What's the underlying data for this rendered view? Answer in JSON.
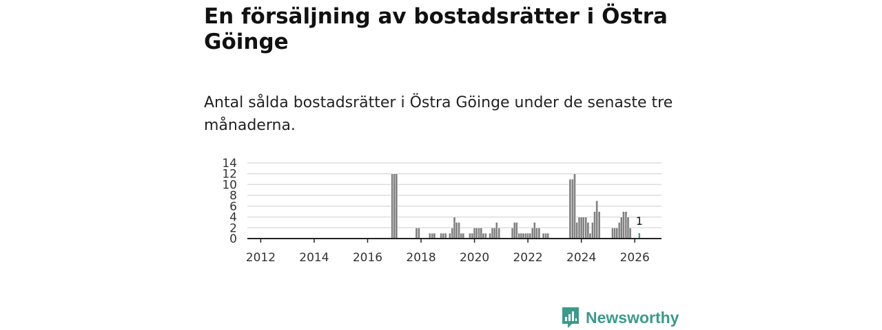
{
  "header": {
    "title": "En försäljning av bostadsrätter i Östra Göinge",
    "subtitle": "Antal sålda bostadsrätter i Östra Göinge under de senaste tre månaderna."
  },
  "brand": {
    "name": "Newsworthy",
    "icon": "newsworthy-logo-icon",
    "color": "#3b9a8c"
  },
  "colors": {
    "bar": "#808080",
    "bar_stroke": "#ffffff",
    "highlight": "#2ba39a",
    "grid": "#dddddd",
    "axis": "#222222"
  },
  "chart_data": {
    "type": "bar",
    "title": "",
    "xlabel": "",
    "ylabel": "",
    "ylim": [
      0,
      14
    ],
    "yticks": [
      0,
      2,
      4,
      6,
      8,
      10,
      12,
      14
    ],
    "xlim": [
      2011.5,
      2027
    ],
    "xticks": [
      2012,
      2014,
      2016,
      2018,
      2020,
      2022,
      2024,
      2026
    ],
    "bar_width_years": 0.0833,
    "x": [
      2016.92,
      2017.0,
      2017.08,
      2017.83,
      2017.92,
      2018.33,
      2018.42,
      2018.5,
      2018.75,
      2018.83,
      2018.92,
      2019.08,
      2019.17,
      2019.25,
      2019.33,
      2019.42,
      2019.5,
      2019.58,
      2019.83,
      2019.92,
      2020.0,
      2020.08,
      2020.17,
      2020.25,
      2020.33,
      2020.42,
      2020.58,
      2020.67,
      2020.75,
      2020.83,
      2020.92,
      2021.42,
      2021.5,
      2021.58,
      2021.67,
      2021.75,
      2021.83,
      2021.92,
      2022.0,
      2022.08,
      2022.17,
      2022.25,
      2022.33,
      2022.42,
      2022.58,
      2022.67,
      2022.75,
      2023.58,
      2023.67,
      2023.75,
      2023.83,
      2023.92,
      2024.0,
      2024.08,
      2024.17,
      2024.25,
      2024.33,
      2024.42,
      2024.5,
      2024.58,
      2024.67,
      2025.17,
      2025.25,
      2025.33,
      2025.42,
      2025.5,
      2025.58,
      2025.67,
      2025.75,
      2025.83,
      2026.17
    ],
    "values": [
      12,
      12,
      12,
      2,
      2,
      1,
      1,
      1,
      1,
      1,
      1,
      1,
      2,
      4,
      3,
      3,
      1,
      1,
      1,
      1,
      2,
      2,
      2,
      2,
      1,
      1,
      1,
      2,
      2,
      3,
      2,
      2,
      3,
      3,
      1,
      1,
      1,
      1,
      1,
      1,
      2,
      3,
      2,
      2,
      1,
      1,
      1,
      11,
      11,
      12,
      3,
      4,
      4,
      4,
      4,
      3,
      1,
      3,
      5,
      7,
      5,
      2,
      2,
      2,
      3,
      4,
      5,
      5,
      4,
      2,
      1
    ],
    "highlight_index": 70,
    "data_labels": [
      {
        "x": 2026.17,
        "text": "1"
      }
    ]
  }
}
